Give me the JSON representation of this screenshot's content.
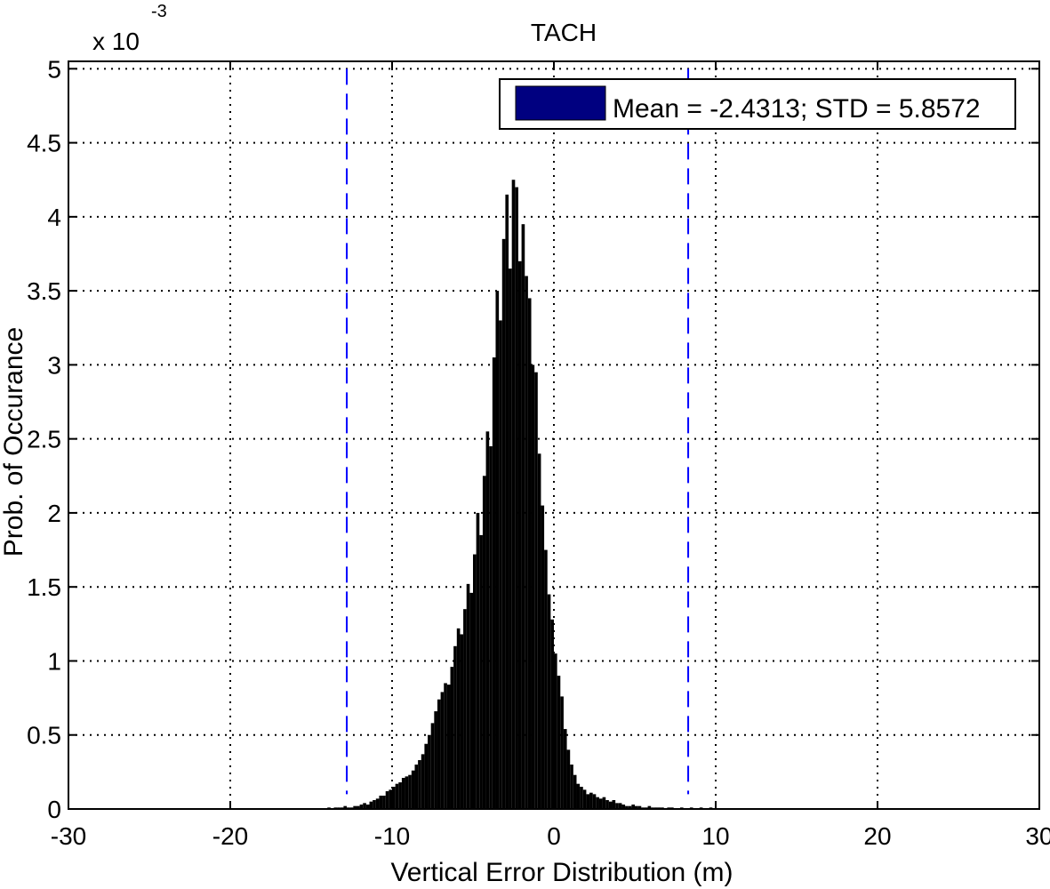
{
  "chart_data": {
    "type": "bar",
    "title": "TACH",
    "xlabel": "Vertical Error Distribution (m)",
    "ylabel": "Prob. of Occurance",
    "y_exponent_label": "x 10",
    "y_exponent_power": "-3",
    "xlim": [
      -30,
      30
    ],
    "ylim": [
      0,
      5.05
    ],
    "xticks": [
      -30,
      -20,
      -10,
      0,
      10,
      20,
      30
    ],
    "xtick_labels": [
      "-30",
      "-20",
      "-10",
      "0",
      "10",
      "20",
      "30"
    ],
    "yticks": [
      0,
      0.5,
      1,
      1.5,
      2,
      2.5,
      3,
      3.5,
      4,
      4.5,
      5
    ],
    "ytick_labels": [
      "0",
      "0.5",
      "1",
      "1.5",
      "2",
      "2.5",
      "3",
      "3.5",
      "4",
      "4.5",
      "5"
    ],
    "grid": true,
    "legend": {
      "position": "top-right",
      "label": "Mean = -2.4313; STD = 5.8572",
      "color": "#000080"
    },
    "bar_color": "#000000",
    "threshold_lines": {
      "x": [
        -12.8,
        8.3
      ],
      "color": "#0000ff",
      "style": "dashed"
    },
    "series": [
      {
        "x": [
          -13.9,
          -13.7,
          -13.5,
          -13.3,
          -13.1,
          -12.9,
          -12.7,
          -12.5,
          -12.3,
          -12.1,
          -11.9,
          -11.7,
          -11.5,
          -11.3,
          -11.1,
          -10.9,
          -10.7,
          -10.5,
          -10.3,
          -10.1,
          -9.9,
          -9.7,
          -9.5,
          -9.3,
          -9.1,
          -8.9,
          -8.7,
          -8.5,
          -8.3,
          -8.1,
          -7.9,
          -7.7,
          -7.5,
          -7.3,
          -7.1,
          -6.9,
          -6.7,
          -6.5,
          -6.3,
          -6.1,
          -5.9,
          -5.7,
          -5.5,
          -5.3,
          -5.1,
          -4.9,
          -4.7,
          -4.5,
          -4.3,
          -4.1,
          -3.9,
          -3.7,
          -3.5,
          -3.3,
          -3.1,
          -2.9,
          -2.7,
          -2.5,
          -2.3,
          -2.1,
          -1.9,
          -1.7,
          -1.5,
          -1.3,
          -1.1,
          -0.9,
          -0.7,
          -0.5,
          -0.3,
          -0.1,
          0.1,
          0.3,
          0.5,
          0.7,
          0.9,
          1.1,
          1.3,
          1.5,
          1.7,
          1.9,
          2.1,
          2.3,
          2.5,
          2.7,
          2.9,
          3.1,
          3.3,
          3.5,
          3.7,
          3.9,
          4.1,
          4.3,
          4.5,
          4.7,
          4.9,
          5.1,
          5.3,
          5.5,
          5.7,
          5.9,
          6.1,
          6.3,
          6.5,
          6.7,
          6.9,
          7.1,
          7.3,
          7.5,
          7.7,
          7.9,
          8.1,
          8.3,
          8.5,
          8.7,
          8.9,
          9.1,
          9.3,
          9.5,
          9.7,
          9.9
        ],
        "values": [
          0.01,
          0.0,
          0.01,
          0.01,
          0.01,
          0.02,
          0.01,
          0.01,
          0.02,
          0.02,
          0.03,
          0.04,
          0.03,
          0.05,
          0.06,
          0.07,
          0.09,
          0.09,
          0.12,
          0.13,
          0.15,
          0.17,
          0.18,
          0.21,
          0.22,
          0.23,
          0.26,
          0.3,
          0.33,
          0.37,
          0.44,
          0.5,
          0.58,
          0.66,
          0.74,
          0.79,
          0.85,
          0.84,
          0.96,
          1.1,
          1.22,
          1.18,
          1.35,
          1.52,
          1.46,
          1.72,
          2.0,
          1.85,
          2.25,
          2.55,
          2.45,
          3.05,
          3.5,
          3.3,
          3.85,
          4.15,
          3.65,
          4.25,
          4.2,
          3.7,
          3.95,
          3.6,
          3.45,
          3.0,
          2.95,
          2.4,
          2.05,
          1.75,
          1.45,
          1.28,
          1.05,
          0.9,
          0.76,
          0.54,
          0.4,
          0.3,
          0.23,
          0.17,
          0.15,
          0.13,
          0.1,
          0.11,
          0.1,
          0.08,
          0.07,
          0.08,
          0.06,
          0.05,
          0.06,
          0.04,
          0.04,
          0.03,
          0.02,
          0.02,
          0.03,
          0.02,
          0.02,
          0.01,
          0.01,
          0.02,
          0.01,
          0.01,
          0.01,
          0.01,
          0.0,
          0.01,
          0.01,
          0.0,
          0.0,
          0.01,
          0.0,
          0.0,
          0.01,
          0.0,
          0.0,
          0.01,
          0.0,
          0.0,
          0.01,
          0.0
        ]
      }
    ]
  }
}
